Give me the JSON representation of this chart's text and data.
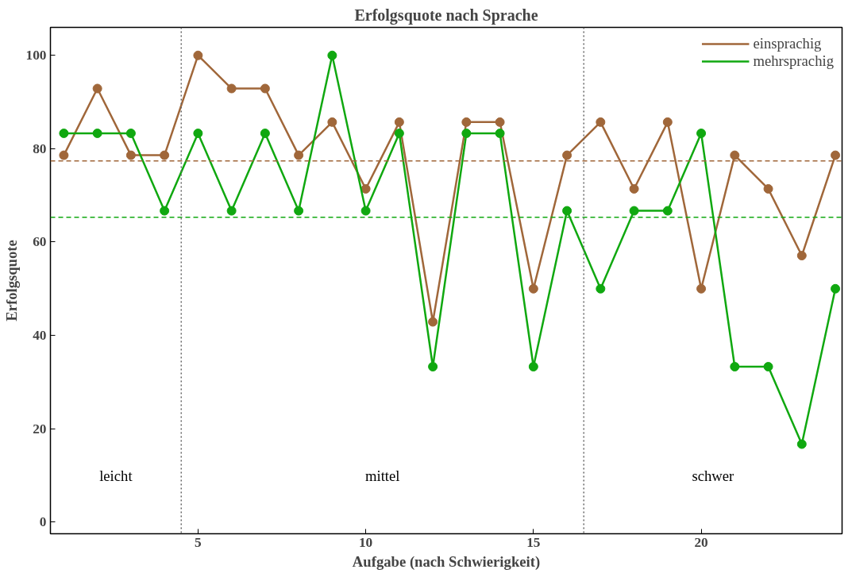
{
  "chart_data": {
    "type": "line",
    "title": "Erfolgsquote nach Sprache",
    "xlabel": "Aufgabe (nach Schwierigkeit)",
    "ylabel": "Erfolgsquote",
    "x": [
      1,
      2,
      3,
      4,
      5,
      6,
      7,
      8,
      9,
      10,
      11,
      12,
      13,
      14,
      15,
      16,
      17,
      18,
      19,
      20,
      21,
      22,
      23,
      24
    ],
    "series": [
      {
        "name": "einsprachig",
        "color": "#a0673a",
        "values": [
          78.6,
          92.9,
          78.6,
          78.6,
          100,
          92.9,
          92.9,
          78.6,
          85.7,
          71.4,
          85.7,
          42.9,
          85.7,
          85.7,
          50,
          78.6,
          85.7,
          71.4,
          85.7,
          50,
          78.6,
          71.4,
          57.1,
          78.6
        ]
      },
      {
        "name": "mehrsprachig",
        "color": "#10a810",
        "values": [
          83.3,
          83.3,
          83.3,
          66.7,
          83.3,
          66.7,
          83.3,
          66.7,
          100,
          66.7,
          83.3,
          33.3,
          83.3,
          83.3,
          33.3,
          66.7,
          50,
          66.7,
          66.7,
          83.3,
          33.3,
          33.3,
          16.7,
          50
        ]
      }
    ],
    "ref_lines": [
      {
        "axis": "y",
        "value": 77.4,
        "color": "#a0673a",
        "line_style": "dashed"
      },
      {
        "axis": "y",
        "value": 65.3,
        "color": "#10a810",
        "line_style": "dashed"
      },
      {
        "axis": "x",
        "value": 4.5,
        "color": "#666666",
        "line_style": "dotted"
      },
      {
        "axis": "x",
        "value": 16.5,
        "color": "#666666",
        "line_style": "dotted"
      }
    ],
    "annotations": [
      "leicht",
      "mittel",
      "schwer"
    ],
    "xlim": [
      0.6,
      24.2
    ],
    "ylim": [
      -2.5,
      106
    ],
    "xticks": [
      5,
      10,
      15,
      20
    ],
    "yticks": [
      0,
      20,
      40,
      60,
      80,
      100
    ],
    "grid": false,
    "legend": "top right",
    "marker": "circle",
    "line_style": "solid"
  }
}
